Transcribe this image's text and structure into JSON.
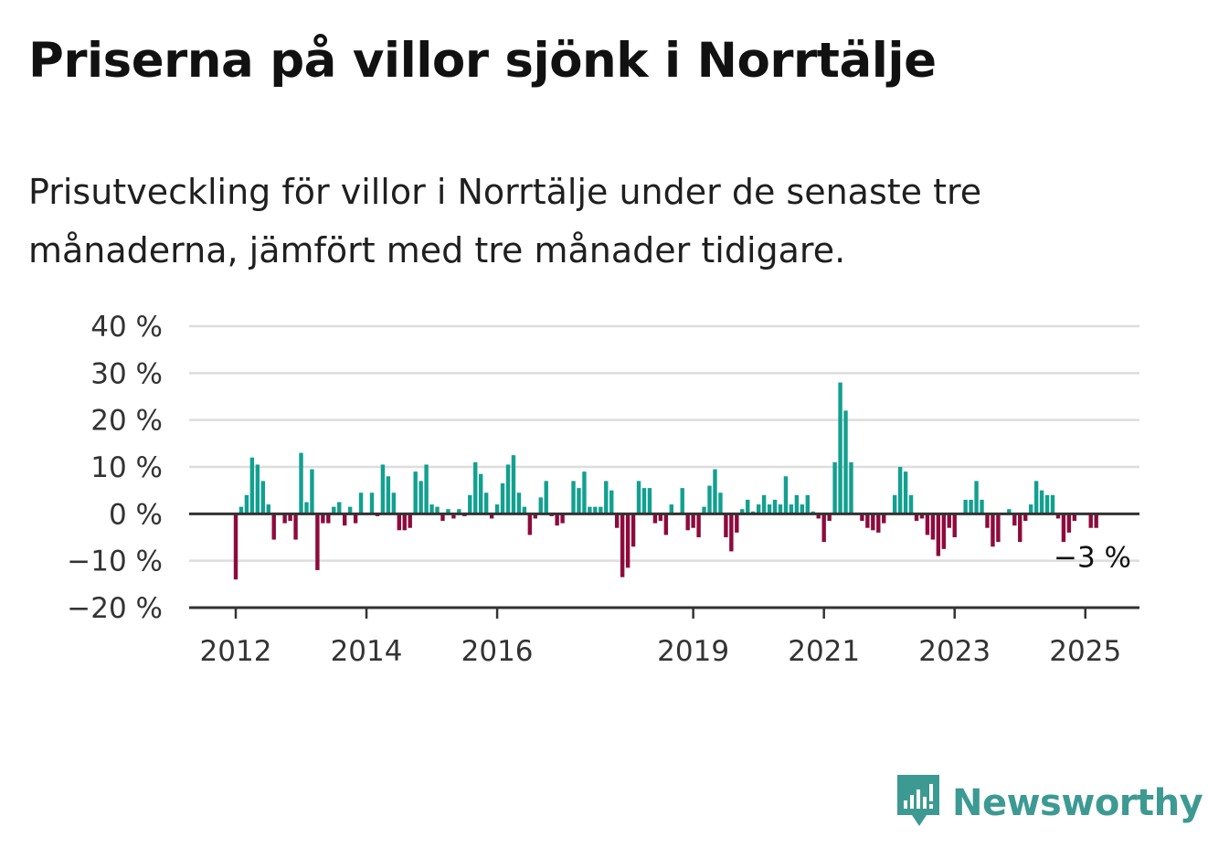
{
  "header": {
    "title": "Priserna på villor sjönk i Norrtälje",
    "subtitle": "Prisutveckling för villor i Norrtälje under de senaste tre månaderna, jämfört med tre månader tidigare."
  },
  "brand": {
    "name": "Newsworthy",
    "icon": "newsworthy-logo-icon",
    "color": "#3d9a92"
  },
  "colors": {
    "positive": "#12a090",
    "negative": "#8e0a3c",
    "grid": "#dddddd",
    "axis": "#333333"
  },
  "chart_data": {
    "type": "bar",
    "title": "Priserna på villor sjönk i Norrtälje",
    "ylim": [
      -20,
      40
    ],
    "y_ticks": [
      40,
      30,
      20,
      10,
      0,
      -10,
      -20
    ],
    "y_tick_labels": [
      "40 %",
      "30 %",
      "20 %",
      "10 %",
      "0 %",
      "−10 %",
      "−20 %"
    ],
    "x_ticks": [
      {
        "label": "2012",
        "index": 0
      },
      {
        "label": "2014",
        "index": 24
      },
      {
        "label": "2016",
        "index": 48
      },
      {
        "label": "2019",
        "index": 84
      },
      {
        "label": "2021",
        "index": 108
      },
      {
        "label": "2023",
        "index": 132
      },
      {
        "label": "2025",
        "index": 156
      }
    ],
    "grid": true,
    "end_label": "−3 %",
    "values": [
      -14,
      1.5,
      4,
      12,
      10.5,
      7,
      2,
      -5.5,
      0,
      -2,
      -1.5,
      -5.5,
      13,
      2.5,
      9.5,
      -12,
      -2,
      -2,
      1.5,
      2.5,
      -2.5,
      1.5,
      -2,
      4.5,
      0,
      4.5,
      -0.5,
      10.5,
      8,
      4.5,
      -3.5,
      -3.5,
      -3,
      9,
      7,
      10.5,
      2,
      1.5,
      -1.5,
      1,
      -1,
      1,
      -0.5,
      4,
      11,
      8.5,
      4.5,
      -1,
      2,
      6.5,
      10.5,
      12.5,
      4.5,
      1.5,
      -4.5,
      -1,
      3.5,
      7,
      -0.5,
      -2.5,
      -2,
      0,
      7,
      5.5,
      9,
      1.5,
      1.5,
      1.5,
      7,
      5,
      -3,
      -13.5,
      -11.5,
      -7,
      7,
      5.5,
      5.5,
      -2,
      -1.5,
      -4.5,
      2,
      0,
      5.5,
      -3.5,
      -3,
      -5,
      1.5,
      6,
      9.5,
      4.5,
      -5,
      -8,
      -4,
      1,
      3,
      0.5,
      2,
      4,
      2,
      3,
      2,
      8,
      2,
      4,
      2,
      4,
      0.5,
      -1,
      -6,
      -1.5,
      11,
      28,
      22,
      11,
      0,
      -1.5,
      -3,
      -3.5,
      -4,
      -2,
      0,
      4,
      10,
      9,
      4,
      -1.5,
      -1,
      -4.5,
      -5.5,
      -9,
      -7.5,
      -3,
      -5,
      0,
      3,
      3,
      7,
      3,
      -3,
      -7,
      -6,
      0,
      1,
      -2.5,
      -6,
      -1.5,
      2,
      7,
      5,
      4,
      4,
      -1,
      -6,
      -4,
      -1.5,
      0,
      0,
      -3,
      -3,
      0,
      0,
      0,
      0,
      0
    ]
  }
}
